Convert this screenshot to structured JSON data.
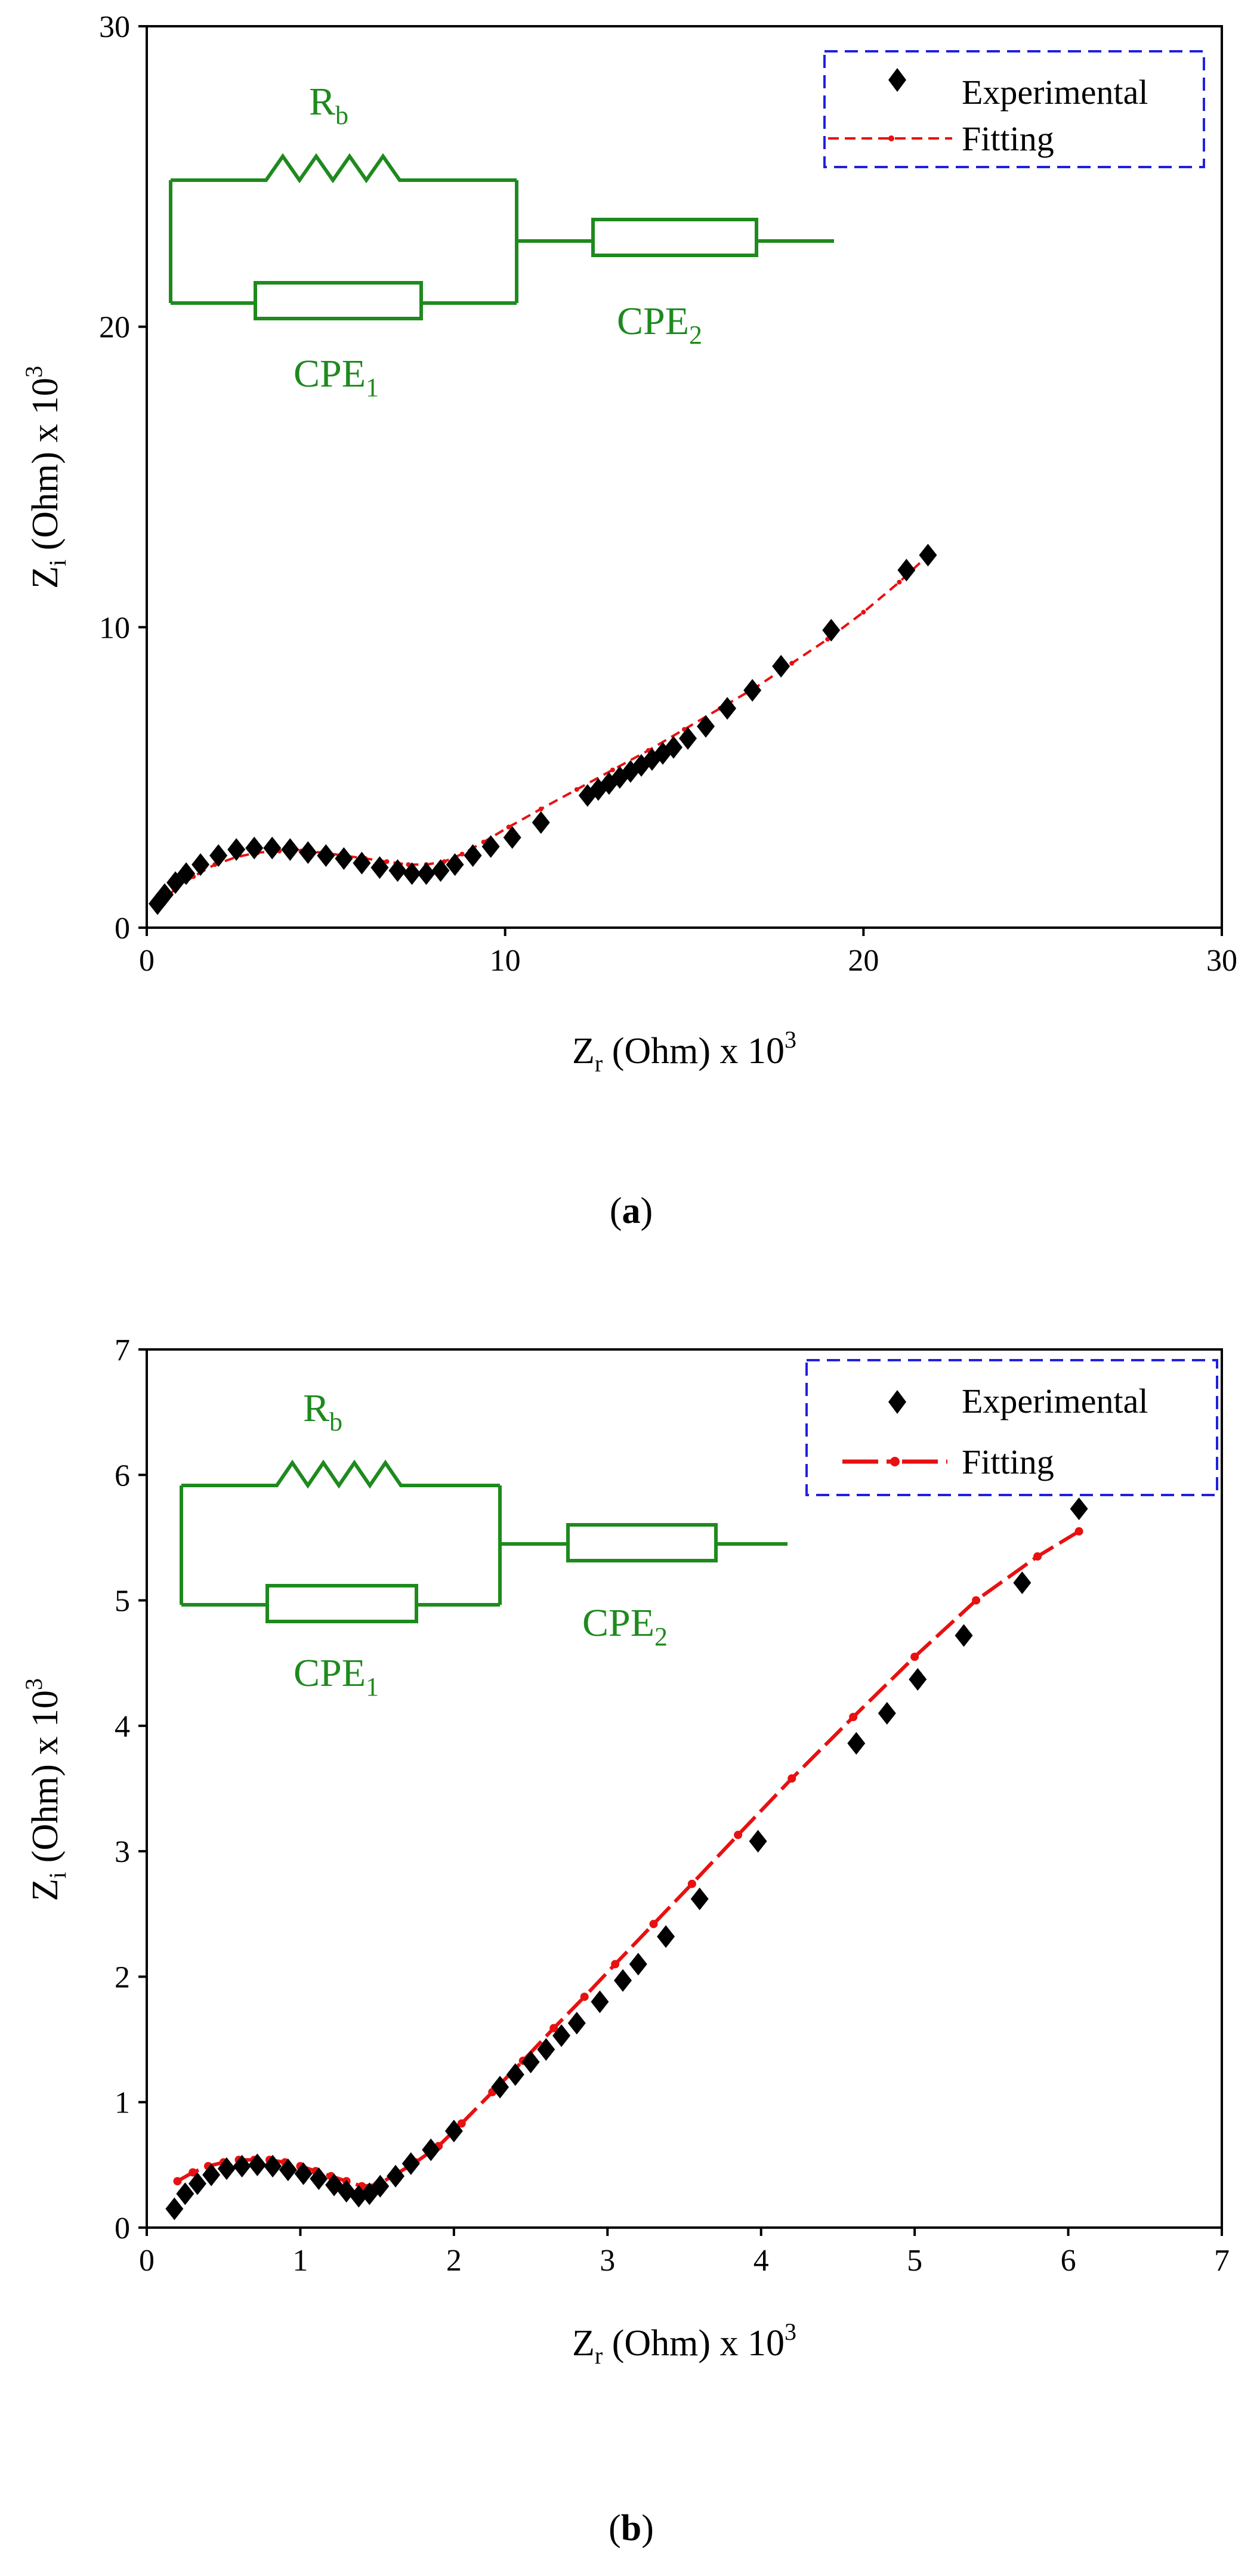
{
  "chart_data": [
    {
      "type": "scatter",
      "caption": "a",
      "title": "",
      "xlabel": "Z",
      "xlabel_sub": "r",
      "xlabel_rest": " (Ohm) x 10",
      "xlabel_sup": "3",
      "ylabel": "Z",
      "ylabel_sub": "i",
      "ylabel_rest": " (Ohm) x 10",
      "ylabel_sup": "3",
      "xlim": [
        0,
        30
      ],
      "ylim": [
        0,
        30
      ],
      "xticks": [
        0,
        10,
        20,
        30
      ],
      "yticks": [
        0,
        10,
        20,
        30
      ],
      "legend": {
        "location": "top-right",
        "entries": [
          "Experimental",
          "Fitting"
        ]
      },
      "circuit": {
        "resistor": "R",
        "resistor_sub": "b",
        "cpe1": "CPE",
        "cpe1_sub": "1",
        "cpe2": "CPE",
        "cpe2_sub": "2"
      },
      "series": [
        {
          "name": "Experimental",
          "marker": "diamond",
          "color": "#000000",
          "x": [
            0.3,
            0.5,
            0.8,
            1.1,
            1.5,
            2.0,
            2.5,
            3.0,
            3.5,
            4.0,
            4.5,
            5.0,
            5.5,
            6.0,
            6.5,
            7.0,
            7.4,
            7.8,
            8.2,
            8.6,
            9.1,
            9.6,
            10.2,
            11.0,
            12.3,
            12.6,
            12.9,
            13.2,
            13.5,
            13.8,
            14.1,
            14.4,
            14.7,
            15.1,
            15.6,
            16.2,
            16.9,
            17.7,
            19.1,
            21.2,
            21.8
          ],
          "y": [
            0.8,
            1.1,
            1.5,
            1.8,
            2.1,
            2.4,
            2.6,
            2.65,
            2.65,
            2.6,
            2.5,
            2.4,
            2.3,
            2.15,
            2.0,
            1.9,
            1.8,
            1.8,
            1.9,
            2.1,
            2.4,
            2.7,
            3.0,
            3.5,
            4.4,
            4.6,
            4.8,
            5.0,
            5.2,
            5.4,
            5.6,
            5.8,
            6.0,
            6.3,
            6.7,
            7.3,
            7.9,
            8.7,
            9.9,
            11.9,
            12.4
          ]
        },
        {
          "name": "Fitting",
          "marker": "dot",
          "line": "dashed",
          "color": "#e81010",
          "x": [
            0.4,
            0.8,
            1.3,
            1.9,
            2.5,
            3.1,
            3.7,
            4.3,
            4.9,
            5.5,
            6.1,
            6.7,
            7.3,
            7.8,
            8.3,
            8.8,
            9.4,
            10.1,
            11.0,
            12.0,
            13.0,
            14.0,
            15.0,
            16.0,
            17.0,
            18.0,
            19.0,
            20.0,
            21.0,
            21.9
          ],
          "y": [
            0.8,
            1.3,
            1.7,
            2.1,
            2.35,
            2.5,
            2.55,
            2.55,
            2.5,
            2.4,
            2.3,
            2.2,
            2.1,
            2.1,
            2.2,
            2.45,
            2.85,
            3.35,
            3.95,
            4.6,
            5.25,
            5.9,
            6.6,
            7.3,
            8.0,
            8.8,
            9.6,
            10.5,
            11.5,
            12.5
          ]
        }
      ]
    },
    {
      "type": "scatter",
      "caption": "b",
      "title": "",
      "xlabel": "Z",
      "xlabel_sub": "r",
      "xlabel_rest": " (Ohm) x 10",
      "xlabel_sup": "3",
      "ylabel": "Z",
      "ylabel_sub": "i",
      "ylabel_rest": " (Ohm) x 10",
      "ylabel_sup": "3",
      "xlim": [
        0,
        7
      ],
      "ylim": [
        0,
        7
      ],
      "xticks": [
        0,
        1,
        2,
        3,
        4,
        5,
        6,
        7
      ],
      "yticks": [
        0,
        1,
        2,
        3,
        4,
        5,
        6,
        7
      ],
      "legend": {
        "location": "top-right",
        "entries": [
          "Experimental",
          "Fitting"
        ]
      },
      "circuit": {
        "resistor": "R",
        "resistor_sub": "b",
        "cpe1": "CPE",
        "cpe1_sub": "1",
        "cpe2": "CPE",
        "cpe2_sub": "2"
      },
      "series": [
        {
          "name": "Experimental",
          "marker": "diamond",
          "color": "#000000",
          "x": [
            0.18,
            0.25,
            0.33,
            0.42,
            0.52,
            0.62,
            0.72,
            0.82,
            0.92,
            1.02,
            1.12,
            1.22,
            1.3,
            1.38,
            1.45,
            1.52,
            1.62,
            1.72,
            1.85,
            2.0,
            2.3,
            2.4,
            2.5,
            2.6,
            2.7,
            2.8,
            2.95,
            3.1,
            3.2,
            3.38,
            3.6,
            3.98,
            4.62,
            4.82,
            5.02,
            5.32,
            5.7,
            6.07
          ],
          "y": [
            0.15,
            0.27,
            0.35,
            0.42,
            0.47,
            0.49,
            0.5,
            0.49,
            0.46,
            0.43,
            0.39,
            0.34,
            0.29,
            0.25,
            0.27,
            0.33,
            0.41,
            0.51,
            0.62,
            0.77,
            1.12,
            1.22,
            1.32,
            1.42,
            1.53,
            1.63,
            1.8,
            1.97,
            2.1,
            2.32,
            2.62,
            3.08,
            3.86,
            4.1,
            4.37,
            4.72,
            5.14,
            5.73
          ]
        },
        {
          "name": "Fitting",
          "marker": "dot",
          "line": "dashed",
          "color": "#e81010",
          "x": [
            0.2,
            0.3,
            0.4,
            0.5,
            0.6,
            0.7,
            0.8,
            0.9,
            1.0,
            1.1,
            1.2,
            1.3,
            1.4,
            1.5,
            1.6,
            1.75,
            1.9,
            2.05,
            2.25,
            2.45,
            2.65,
            2.85,
            3.05,
            3.3,
            3.55,
            3.85,
            4.2,
            4.6,
            5.0,
            5.4,
            5.8,
            6.07
          ],
          "y": [
            0.37,
            0.44,
            0.49,
            0.52,
            0.54,
            0.54,
            0.54,
            0.52,
            0.49,
            0.45,
            0.41,
            0.37,
            0.33,
            0.34,
            0.41,
            0.52,
            0.65,
            0.83,
            1.08,
            1.33,
            1.59,
            1.84,
            2.1,
            2.42,
            2.74,
            3.13,
            3.58,
            4.07,
            4.55,
            5.0,
            5.35,
            5.55
          ]
        }
      ]
    }
  ]
}
